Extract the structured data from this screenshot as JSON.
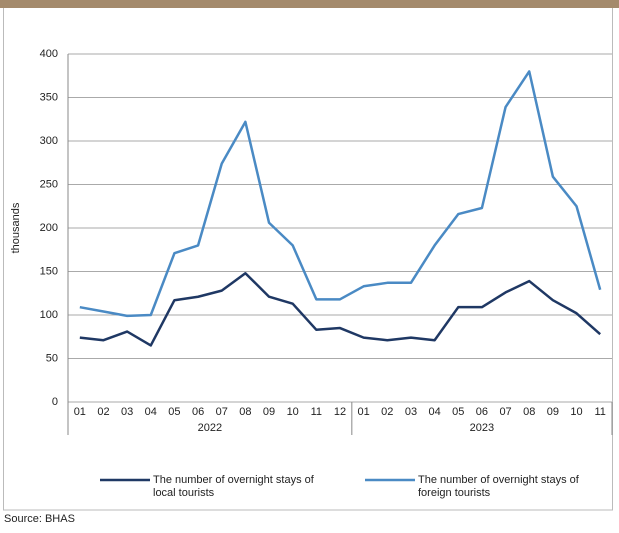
{
  "chart_data": {
    "type": "line",
    "y_label": "thousands",
    "groups": [
      {
        "label": "2022",
        "categories": [
          "01",
          "02",
          "03",
          "04",
          "05",
          "06",
          "07",
          "08",
          "09",
          "10",
          "11",
          "12"
        ]
      },
      {
        "label": "2023",
        "categories": [
          "01",
          "02",
          "03",
          "04",
          "05",
          "06",
          "07",
          "08",
          "09",
          "10",
          "11"
        ]
      }
    ],
    "series": [
      {
        "name": "The number of overnight stays of local tourists",
        "color": "#1f3864",
        "values": [
          74,
          71,
          81,
          65,
          117,
          121,
          128,
          148,
          121,
          113,
          83,
          85,
          74,
          71,
          74,
          71,
          109,
          109,
          126,
          139,
          117,
          102,
          78
        ]
      },
      {
        "name": "The number of overnight stays of foreign tourists",
        "color": "#4a8ac4",
        "values": [
          109,
          104,
          99,
          100,
          171,
          180,
          274,
          322,
          206,
          180,
          118,
          118,
          133,
          137,
          137,
          180,
          216,
          223,
          339,
          380,
          259,
          225,
          129
        ]
      }
    ],
    "ylim": [
      0,
      400
    ],
    "yticks": [
      0,
      50,
      100,
      150,
      200,
      250,
      300,
      350,
      400
    ],
    "grid": true,
    "source": "Source: BHAS"
  }
}
